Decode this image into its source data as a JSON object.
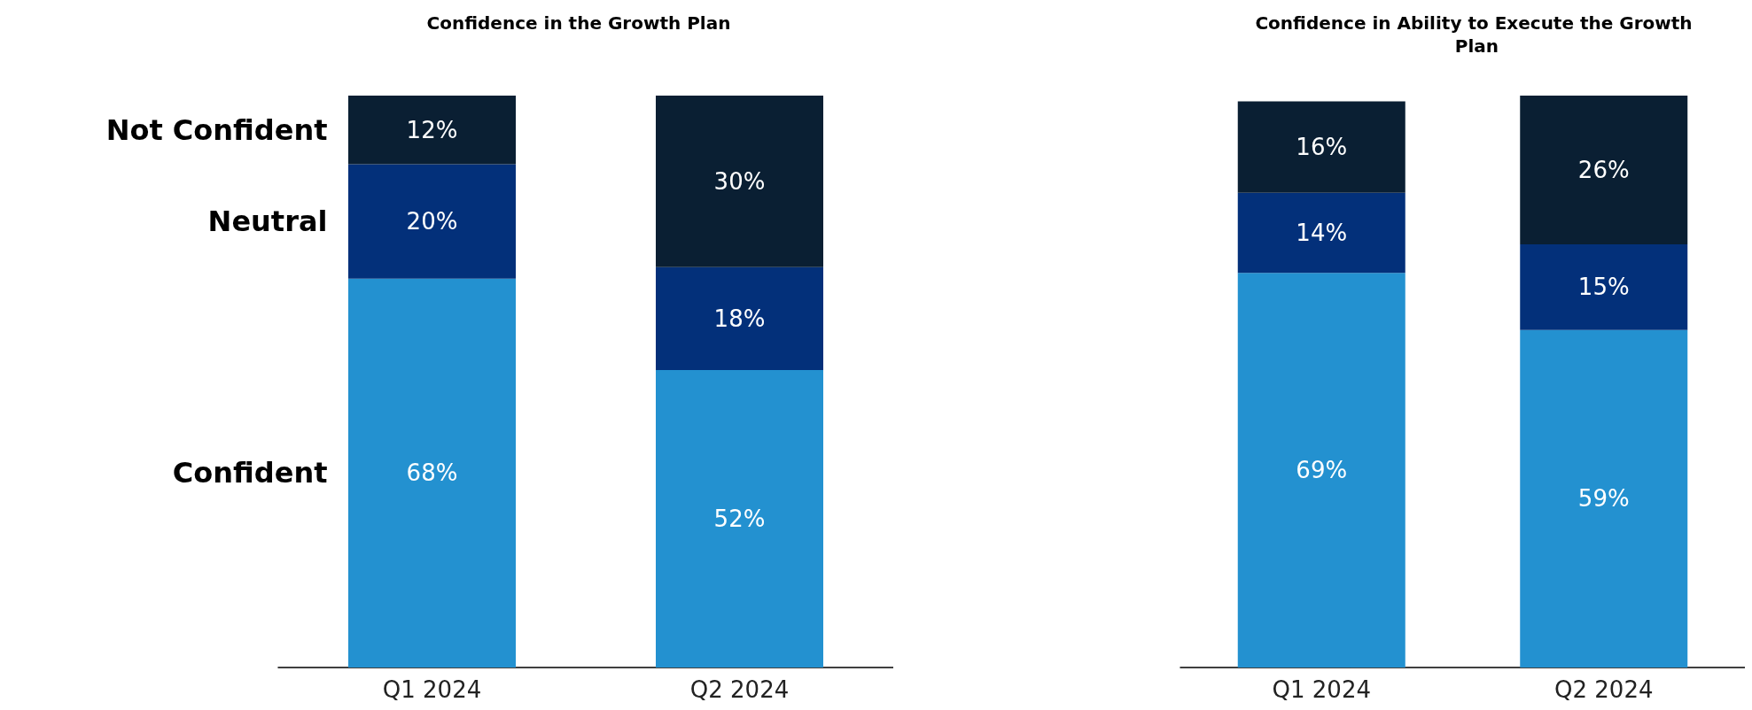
{
  "chart_data": [
    {
      "type": "bar",
      "title": "Confidence in the Growth Plan",
      "categories": [
        "Q1 2024",
        "Q2 2024"
      ],
      "stacked": true,
      "ylim": [
        0,
        100
      ],
      "tick_labels": "x",
      "legend": false,
      "series": [
        {
          "name": "Confident",
          "color": "#2391d0",
          "values": [
            68,
            52
          ],
          "value_labels": [
            "68%",
            "52%"
          ]
        },
        {
          "name": "Neutral",
          "color": "#03307a",
          "values": [
            20,
            18
          ],
          "value_labels": [
            "20%",
            "18%"
          ]
        },
        {
          "name": "Not Confident",
          "color": "#0a1f33",
          "values": [
            12,
            30
          ],
          "value_labels": [
            "12%",
            "30%"
          ]
        }
      ]
    },
    {
      "type": "bar",
      "title": "Confidence in Ability to Execute the Growth Plan",
      "categories": [
        "Q1 2024",
        "Q2 2024"
      ],
      "stacked": true,
      "ylim": [
        0,
        100
      ],
      "tick_labels": "x",
      "legend": false,
      "series": [
        {
          "color": "#2391d0",
          "values": [
            69,
            59
          ],
          "value_labels": [
            "69%",
            "59%"
          ]
        },
        {
          "color": "#03307a",
          "values": [
            14,
            15
          ],
          "value_labels": [
            "14%",
            "15%"
          ]
        },
        {
          "color": "#0a1f33",
          "values": [
            16,
            26
          ],
          "value_labels": [
            "16%",
            "26%"
          ]
        }
      ]
    }
  ]
}
